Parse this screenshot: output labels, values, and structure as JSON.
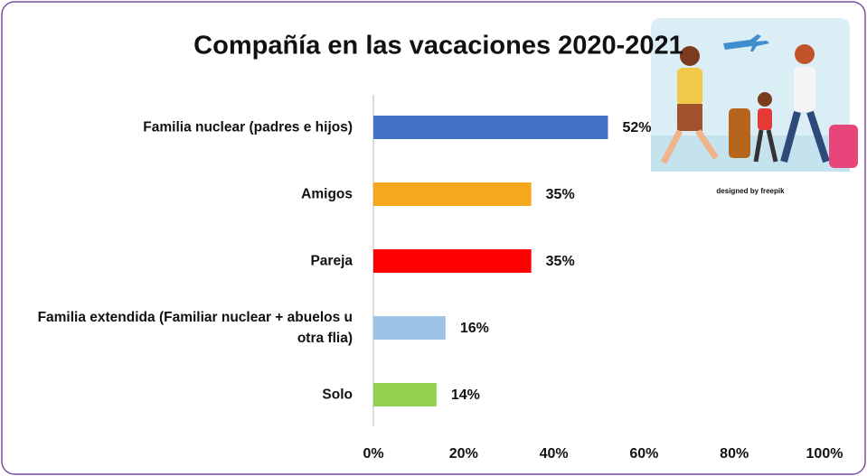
{
  "chart_data": {
    "type": "bar",
    "orientation": "horizontal",
    "title": "Compañía en las vacaciones 2020-2021",
    "categories": [
      "Familia nuclear (padres e hijos)",
      "Amigos",
      "Pareja",
      "Familia extendida (Familiar nuclear + abuelos u otra flia)",
      "Solo"
    ],
    "values": [
      52,
      35,
      35,
      16,
      14
    ],
    "value_labels": [
      "52%",
      "35%",
      "35%",
      "16%",
      "14%"
    ],
    "colors": [
      "#4472c4",
      "#f5a81c",
      "#ff0000",
      "#9dc3e6",
      "#92d050"
    ],
    "xlim": [
      0,
      100
    ],
    "xticks": [
      {
        "value": 0,
        "label": "0%"
      },
      {
        "value": 20,
        "label": "20%"
      },
      {
        "value": 40,
        "label": "40%"
      },
      {
        "value": 60,
        "label": "60%"
      },
      {
        "value": 80,
        "label": "80%"
      },
      {
        "value": 100,
        "label": "100%"
      }
    ],
    "grid": false,
    "image_credit": "designed by freepik"
  }
}
